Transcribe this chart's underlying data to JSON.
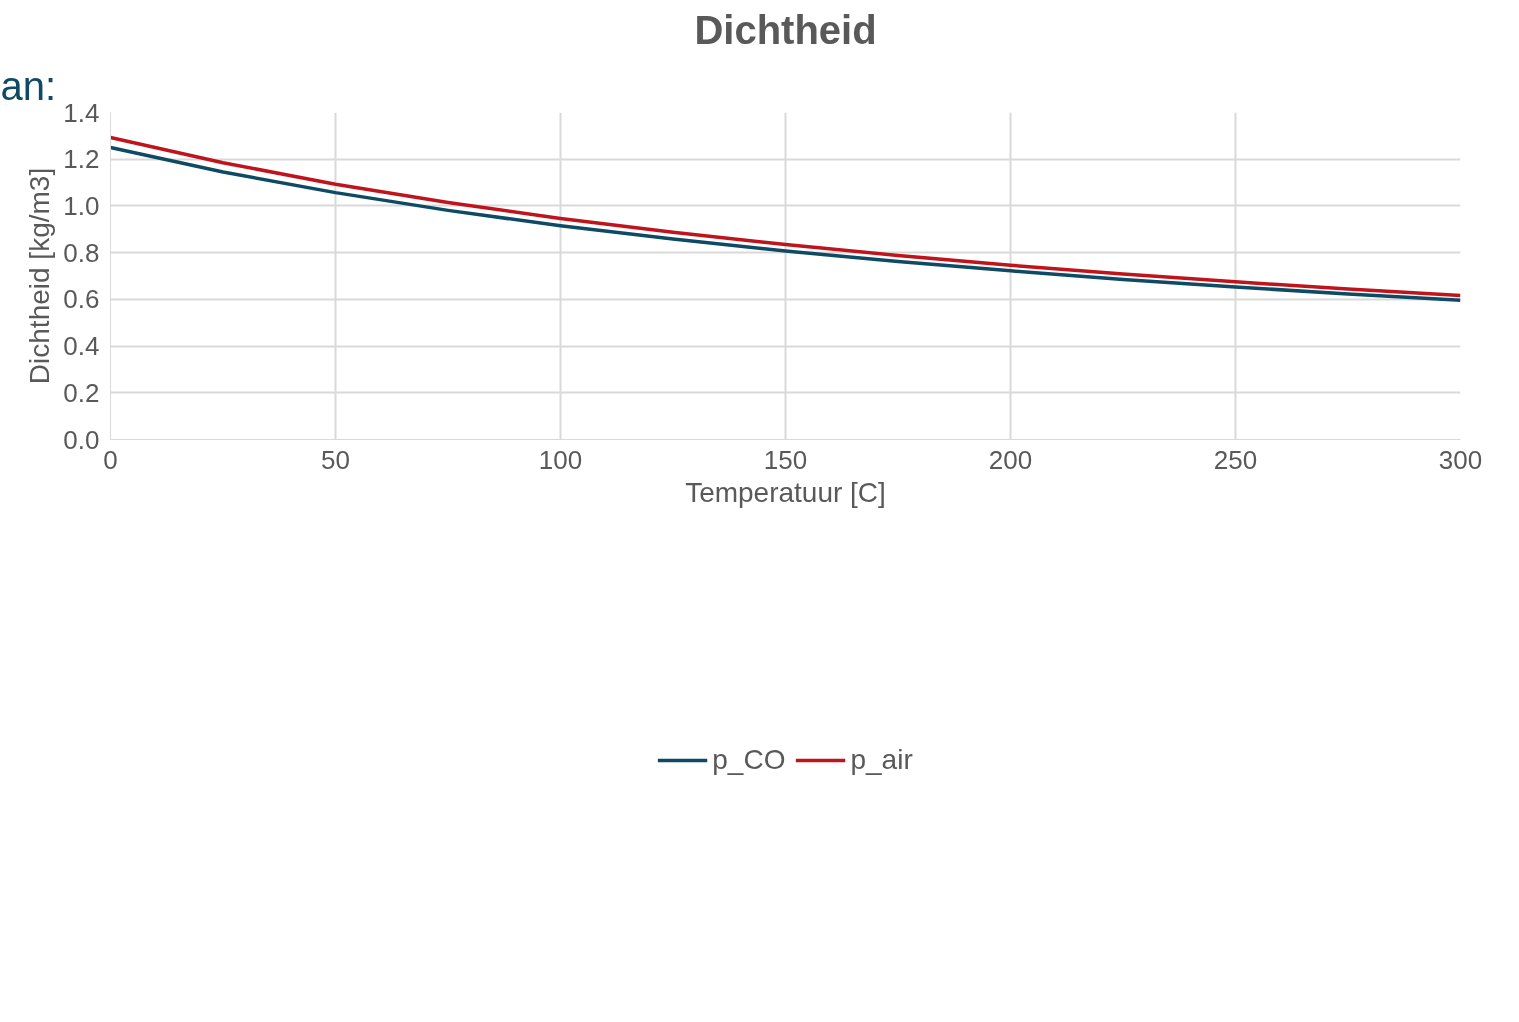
{
  "chart_data": {
    "type": "line",
    "title": "Dichtheid",
    "xlabel": "Temperatuur [C]",
    "ylabel": "Dichtheid [kg/m3]",
    "annotations": [
      "an:"
    ],
    "x": [
      0,
      25,
      50,
      75,
      100,
      125,
      150,
      175,
      200,
      225,
      250,
      275,
      300
    ],
    "series": [
      {
        "name": "p_CO",
        "color": "#0e4a64",
        "values": [
          1.25,
          1.145,
          1.057,
          0.981,
          0.915,
          0.858,
          0.807,
          0.762,
          0.722,
          0.685,
          0.653,
          0.623,
          0.596
        ]
      },
      {
        "name": "p_air",
        "color": "#c0141c",
        "values": [
          1.293,
          1.185,
          1.093,
          1.015,
          0.946,
          0.887,
          0.835,
          0.788,
          0.746,
          0.709,
          0.675,
          0.644,
          0.616
        ]
      }
    ],
    "xlim": [
      0,
      300
    ],
    "xticks": [
      0,
      50,
      100,
      150,
      200,
      250,
      300
    ],
    "ylim": [
      0,
      1.4
    ],
    "yticks": [
      {
        "value": 0,
        "label": "0.0"
      },
      {
        "value": 0.2,
        "label": "0.2"
      },
      {
        "value": 0.4,
        "label": "0.4"
      },
      {
        "value": 0.6,
        "label": "0.6"
      },
      {
        "value": 0.8,
        "label": "0.8"
      },
      {
        "value": 1.0,
        "label": "1.0"
      },
      {
        "value": 1.2,
        "label": "1.2"
      },
      {
        "value": 1.4,
        "label": "1.4"
      }
    ],
    "grid": true,
    "legend": "bottom",
    "marker": "none",
    "line_style": "solid"
  }
}
